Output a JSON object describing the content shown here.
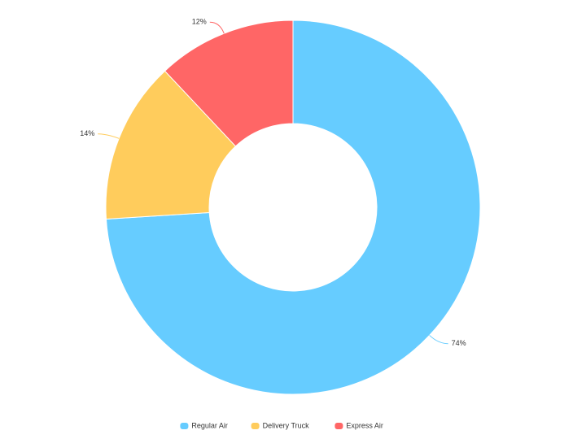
{
  "chart_data": {
    "type": "donut",
    "categories": [
      "Regular Air",
      "Delivery Truck",
      "Express Air"
    ],
    "values": [
      74,
      14,
      12
    ],
    "value_labels": [
      "74%",
      "14%",
      "12%"
    ],
    "colors": [
      "#66ccff",
      "#ffcc5c",
      "#ff6666"
    ],
    "legend": "bottom"
  }
}
